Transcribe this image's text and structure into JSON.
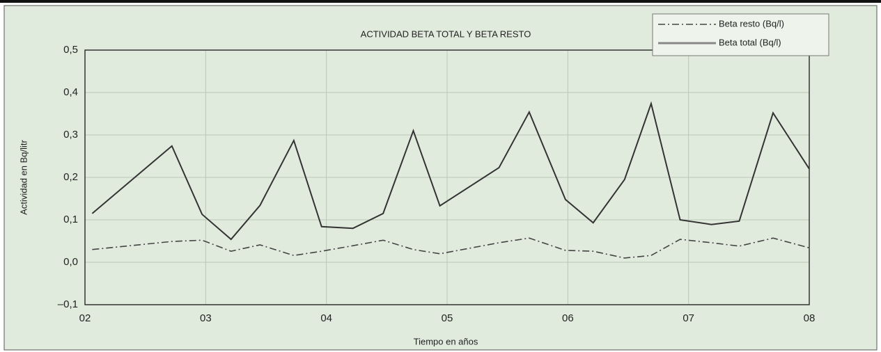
{
  "chart_data": {
    "type": "line",
    "title": "ACTIVIDAD BETA TOTAL Y BETA RESTO",
    "x_label": "Tiempo en años",
    "y_label": "Actividad en Bq/litr",
    "x": [
      2002.06,
      2002.72,
      2002.97,
      2003.21,
      2003.45,
      2003.73,
      2003.96,
      2004.22,
      2004.47,
      2004.72,
      2004.94,
      2005.43,
      2005.68,
      2005.98,
      2006.21,
      2006.47,
      2006.69,
      2006.93,
      2007.19,
      2007.42,
      2007.7,
      2008.0
    ],
    "series": [
      {
        "name": "Beta resto (Bq/l)",
        "color": "#444444",
        "style": "dashdot",
        "values": [
          0.03,
          0.049,
          0.052,
          0.026,
          0.041,
          0.016,
          0.026,
          0.039,
          0.052,
          0.03,
          0.02,
          0.046,
          0.057,
          0.028,
          0.026,
          0.01,
          0.016,
          0.054,
          0.046,
          0.038,
          0.057,
          0.034
        ]
      },
      {
        "name": "Beta total (Bq/l)",
        "color": "#333333",
        "style": "solid",
        "values": [
          0.115,
          0.274,
          0.113,
          0.054,
          0.134,
          0.287,
          0.084,
          0.08,
          0.115,
          0.31,
          0.133,
          0.223,
          0.354,
          0.148,
          0.093,
          0.195,
          0.374,
          0.1,
          0.089,
          0.097,
          0.352,
          0.22
        ]
      }
    ],
    "xlim": [
      2002,
      2008
    ],
    "xticks": [
      {
        "value": 2002,
        "label": "02"
      },
      {
        "value": 2003,
        "label": "03"
      },
      {
        "value": 2004,
        "label": "04"
      },
      {
        "value": 2005,
        "label": "05"
      },
      {
        "value": 2006,
        "label": "06"
      },
      {
        "value": 2007,
        "label": "07"
      },
      {
        "value": 2008,
        "label": "08"
      }
    ],
    "ylim": [
      -0.1,
      0.5
    ],
    "yticks": [
      {
        "value": -0.1,
        "label": "–0,1"
      },
      {
        "value": 0,
        "label": "0,0"
      },
      {
        "value": 0.1,
        "label": "0,1"
      },
      {
        "value": 0.2,
        "label": "0,2"
      },
      {
        "value": 0.3,
        "label": "0,3"
      },
      {
        "value": 0.4,
        "label": "0,4"
      },
      {
        "value": 0.5,
        "label": "0,5"
      }
    ],
    "grid": true
  }
}
